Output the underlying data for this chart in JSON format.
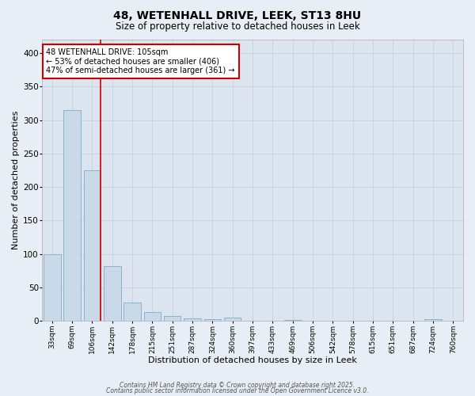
{
  "title_line1": "48, WETENHALL DRIVE, LEEK, ST13 8HU",
  "title_line2": "Size of property relative to detached houses in Leek",
  "xlabel": "Distribution of detached houses by size in Leek",
  "ylabel": "Number of detached properties",
  "bar_labels": [
    "33sqm",
    "69sqm",
    "106sqm",
    "142sqm",
    "178sqm",
    "215sqm",
    "251sqm",
    "287sqm",
    "324sqm",
    "360sqm",
    "397sqm",
    "433sqm",
    "469sqm",
    "506sqm",
    "542sqm",
    "578sqm",
    "615sqm",
    "651sqm",
    "687sqm",
    "724sqm",
    "760sqm"
  ],
  "bar_values": [
    100,
    315,
    225,
    82,
    28,
    13,
    8,
    4,
    3,
    5,
    0,
    0,
    2,
    0,
    0,
    0,
    0,
    0,
    0,
    3,
    0
  ],
  "bar_color": "#c9d9e8",
  "bar_edge_color": "#7aaec8",
  "ref_line_color": "#cc0000",
  "ref_line_index": 2,
  "annotation_text": "48 WETENHALL DRIVE: 105sqm\n← 53% of detached houses are smaller (406)\n47% of semi-detached houses are larger (361) →",
  "annotation_box_color": "#ffffff",
  "annotation_box_edge": "#cc0000",
  "ylim": [
    0,
    420
  ],
  "yticks": [
    0,
    50,
    100,
    150,
    200,
    250,
    300,
    350,
    400
  ],
  "grid_color": "#c8d0dc",
  "bg_color": "#dce4f0",
  "fig_bg_color": "#e8eef5",
  "footer_line1": "Contains HM Land Registry data © Crown copyright and database right 2025.",
  "footer_line2": "Contains public sector information licensed under the Open Government Licence v3.0."
}
